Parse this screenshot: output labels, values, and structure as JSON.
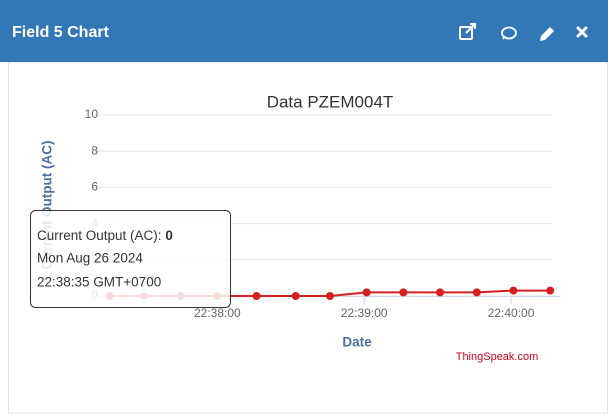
{
  "panel_title": "Field 5 Chart",
  "chart_data": {
    "type": "line",
    "title": "Data PZEM004T",
    "x_label": "Date",
    "y_label": "Current Output (AC)",
    "x": [
      "22:37:16",
      "22:37:30",
      "22:37:45",
      "22:38:00",
      "22:38:16",
      "22:38:32",
      "22:38:46",
      "22:39:01",
      "22:39:16",
      "22:39:31",
      "22:39:46",
      "22:40:01",
      "22:40:16"
    ],
    "series": [
      {
        "name": "Current Output (AC)",
        "color": "#d62020",
        "values": [
          0,
          0,
          0,
          0,
          0,
          0,
          0,
          0.2,
          0.2,
          0.2,
          0.2,
          0.3,
          0.3
        ]
      }
    ],
    "xlim": [
      "22:37:10",
      "22:40:20"
    ],
    "xticks": [
      "22:38:00",
      "22:39:00",
      "22:40:00"
    ],
    "ylim": [
      0,
      10
    ],
    "yticks": [
      0,
      2,
      4,
      6,
      8,
      10
    ],
    "grid": true
  },
  "tooltip": {
    "label": "Current Output (AC):",
    "value": 0,
    "date": "Mon Aug 26 2024",
    "time": "22:38:35 GMT+0700"
  },
  "credit": "ThingSpeak.com"
}
